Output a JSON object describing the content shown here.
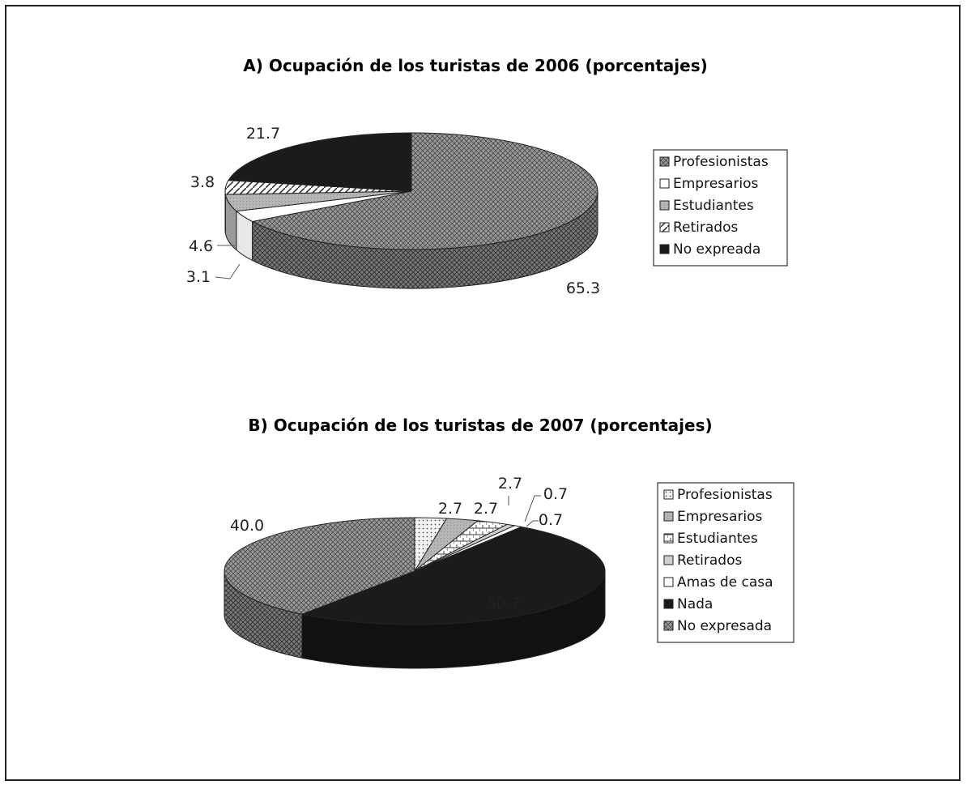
{
  "colors": {
    "pattern_cross": "#8a8a8a",
    "pattern_white": "#ffffff",
    "pattern_gray": "#b8b8b8",
    "pattern_dark": "#1b1b1b",
    "pattern_hatch_light": "#dedede",
    "pattern_brick": "#c9c9c9"
  },
  "chart_data": [
    {
      "type": "pie",
      "title": "A) Ocupación de los turistas de 2006 (porcentajes)",
      "categories": [
        "Profesionistas",
        "Empresarios",
        "Estudiantes",
        "Retirados",
        "No expreada"
      ],
      "values": [
        65.3,
        3.1,
        4.6,
        3.8,
        21.7
      ],
      "labels": [
        "65.3",
        "3.1",
        "4.6",
        "3.8",
        "21.7"
      ],
      "patterns": [
        "cross",
        "white",
        "gray",
        "hatch",
        "dark"
      ],
      "legend_position": "right"
    },
    {
      "type": "pie",
      "title": "B) Ocupación de los turistas de 2007 (porcentajes)",
      "categories": [
        "Profesionistas",
        "Empresarios",
        "Estudiantes",
        "Retirados",
        "Amas de casa",
        "Nada",
        "No expresada"
      ],
      "values": [
        2.7,
        2.7,
        2.7,
        0.7,
        0.7,
        50.7,
        40.0
      ],
      "labels": [
        "2.7",
        "2.7",
        "2.7",
        "0.7",
        "0.7",
        "50.7",
        "40.0"
      ],
      "patterns": [
        "dots",
        "gray",
        "brick",
        "lightgray",
        "white",
        "dark",
        "cross"
      ],
      "legend_position": "right"
    }
  ]
}
